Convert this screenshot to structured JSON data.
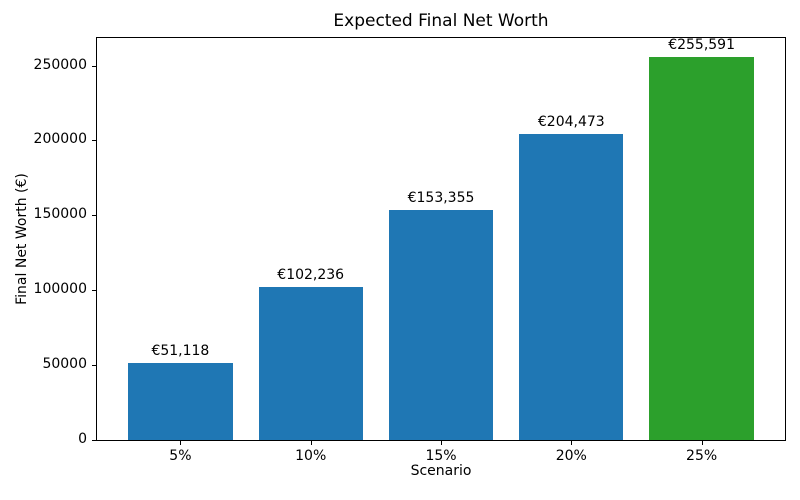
{
  "chart_data": {
    "type": "bar",
    "title": "Expected Final Net Worth",
    "xlabel": "Scenario",
    "ylabel": "Final Net Worth (€)",
    "categories": [
      "5%",
      "10%",
      "15%",
      "20%",
      "25%"
    ],
    "values": [
      51118,
      102236,
      153355,
      204473,
      255591
    ],
    "bar_labels": [
      "€51,118",
      "€102,236",
      "€153,355",
      "€204,473",
      "€255,591"
    ],
    "bar_colors": [
      "#1f77b4",
      "#1f77b4",
      "#1f77b4",
      "#1f77b4",
      "#2ca02c"
    ],
    "yticks": [
      0,
      50000,
      100000,
      150000,
      200000,
      250000
    ],
    "ytick_labels": [
      "0",
      "50000",
      "100000",
      "150000",
      "200000",
      "250000"
    ],
    "ylim": [
      0,
      268371
    ],
    "bar_width_fraction": 0.8,
    "grid": false,
    "legend": null,
    "colors": {
      "bar_blue": "#1f77b4",
      "bar_green": "#2ca02c",
      "text": "#000000",
      "spine": "#000000",
      "background": "#ffffff"
    }
  }
}
